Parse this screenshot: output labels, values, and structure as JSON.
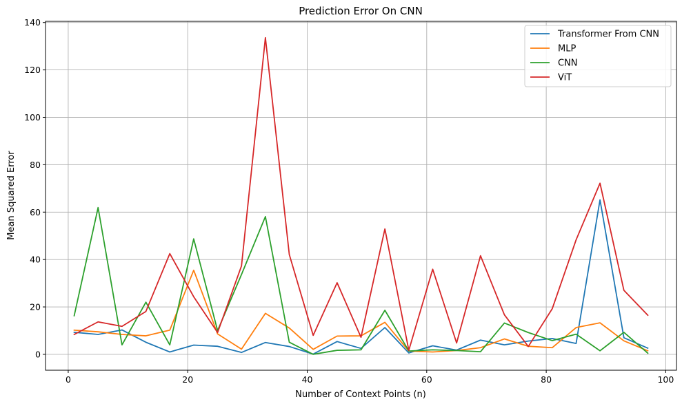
{
  "chart_data": {
    "type": "line",
    "title": "Prediction Error On CNN",
    "xlabel": "Number of Context Points (n)",
    "ylabel": "Mean Squared Error",
    "xlim": [
      -3.8,
      101.8
    ],
    "ylim": [
      -6.7,
      140.5
    ],
    "xticks": [
      0,
      20,
      40,
      60,
      80,
      100
    ],
    "yticks": [
      0,
      20,
      40,
      60,
      80,
      100,
      120,
      140
    ],
    "grid": true,
    "legend_position": "top-right",
    "x": [
      1,
      5,
      9,
      13,
      17,
      21,
      25,
      29,
      33,
      37,
      41,
      45,
      49,
      53,
      57,
      61,
      65,
      69,
      73,
      77,
      81,
      85,
      89,
      93,
      97
    ],
    "series": [
      {
        "name": "Transformer From CNN",
        "color": "#1f77b4",
        "values": [
          9.3,
          8.4,
          10.3,
          5.1,
          1.0,
          3.9,
          3.4,
          0.8,
          5.0,
          3.3,
          0.1,
          5.4,
          2.5,
          11.3,
          0.6,
          3.6,
          1.8,
          6.0,
          4.0,
          5.6,
          6.7,
          4.6,
          65.2,
          7.0,
          2.6
        ]
      },
      {
        "name": "MLP",
        "color": "#ff7f0e",
        "values": [
          10.2,
          9.5,
          8.4,
          7.8,
          10.2,
          35.5,
          8.6,
          2.2,
          17.3,
          11.1,
          2.1,
          7.7,
          7.8,
          13.5,
          1.4,
          1.0,
          1.6,
          2.8,
          6.5,
          3.4,
          2.8,
          11.3,
          13.3,
          5.7,
          1.5
        ]
      },
      {
        "name": "CNN",
        "color": "#2ca02c",
        "values": [
          16.3,
          61.9,
          4.0,
          22.0,
          4.0,
          48.7,
          10.0,
          33.7,
          58.1,
          5.1,
          0.0,
          1.7,
          1.9,
          18.6,
          1.4,
          1.9,
          1.6,
          1.1,
          13.2,
          9.2,
          5.8,
          8.5,
          1.5,
          9.3,
          0.5
        ]
      },
      {
        "name": "ViT",
        "color": "#d62728",
        "values": [
          8.4,
          13.7,
          11.8,
          18.1,
          42.5,
          24.3,
          9.2,
          37.3,
          133.6,
          42.1,
          8.0,
          30.2,
          7.2,
          52.9,
          1.7,
          35.9,
          4.8,
          41.6,
          16.7,
          3.3,
          19.2,
          48.3,
          72.2,
          27.0,
          16.5
        ]
      }
    ]
  }
}
